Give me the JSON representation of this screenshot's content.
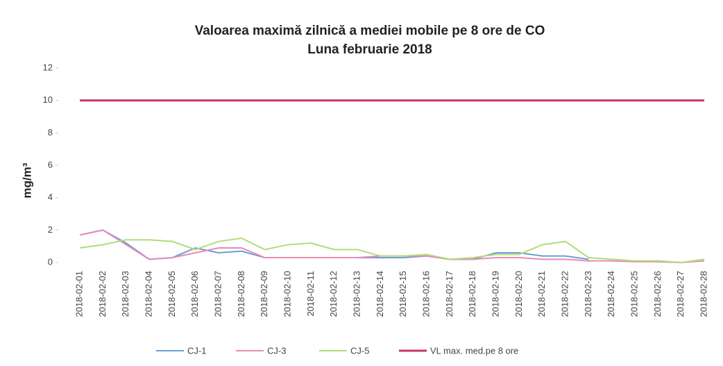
{
  "chart_data": {
    "type": "line",
    "title": "Valoarea maximă zilnică a mediei mobile pe 8 ore de CO",
    "subtitle": "Luna februarie 2018",
    "y_label": "mg/m³",
    "categories": [
      "2018-02-01",
      "2018-02-02",
      "2018-02-03",
      "2018-02-04",
      "2018-02-05",
      "2018-02-06",
      "2018-02-07",
      "2018-02-08",
      "2018-02-09",
      "2018-02-10",
      "2018-02-11",
      "2018-02-12",
      "2018-02-13",
      "2018-02-14",
      "2018-02-15",
      "2018-02-16",
      "2018-02-17",
      "2018-02-18",
      "2018-02-19",
      "2018-02-20",
      "2018-02-21",
      "2018-02-22",
      "2018-02-23",
      "2018-02-24",
      "2018-02-25",
      "2018-02-26",
      "2018-02-27",
      "2018-02-28"
    ],
    "series": [
      {
        "name": "CJ-1",
        "color": "#6a9fd6",
        "values": [
          1.7,
          2.0,
          1.2,
          0.2,
          0.3,
          0.9,
          0.6,
          0.7,
          0.3,
          0.3,
          0.3,
          0.3,
          0.3,
          0.3,
          0.3,
          0.4,
          0.2,
          0.2,
          0.6,
          0.6,
          0.4,
          0.4,
          0.2,
          null,
          null,
          null,
          null,
          null
        ]
      },
      {
        "name": "CJ-3",
        "color": "#e98ab8",
        "values": [
          1.7,
          2.0,
          1.1,
          0.2,
          0.3,
          0.6,
          0.9,
          0.9,
          0.3,
          0.3,
          0.3,
          0.3,
          0.3,
          0.4,
          0.4,
          0.4,
          0.2,
          0.2,
          0.3,
          0.3,
          0.2,
          0.2,
          0.1,
          0.1,
          0.05,
          0.05,
          0.0,
          0.1
        ]
      },
      {
        "name": "CJ-5",
        "color": "#b0dc78",
        "values": [
          0.9,
          1.1,
          1.4,
          1.4,
          1.3,
          0.8,
          1.3,
          1.5,
          0.8,
          1.1,
          1.2,
          0.8,
          0.8,
          0.4,
          0.4,
          0.5,
          0.2,
          0.3,
          0.5,
          0.5,
          1.1,
          1.3,
          0.3,
          0.2,
          0.1,
          0.1,
          0.0,
          0.2
        ]
      },
      {
        "name": "VL max. med.pe 8 ore",
        "color": "#c8326e",
        "values": [
          10,
          10,
          10,
          10,
          10,
          10,
          10,
          10,
          10,
          10,
          10,
          10,
          10,
          10,
          10,
          10,
          10,
          10,
          10,
          10,
          10,
          10,
          10,
          10,
          10,
          10,
          10,
          10
        ]
      }
    ],
    "ylim": [
      0,
      12
    ],
    "yticks": [
      0,
      2,
      4,
      6,
      8,
      10,
      12
    ],
    "legend": "bottom"
  }
}
